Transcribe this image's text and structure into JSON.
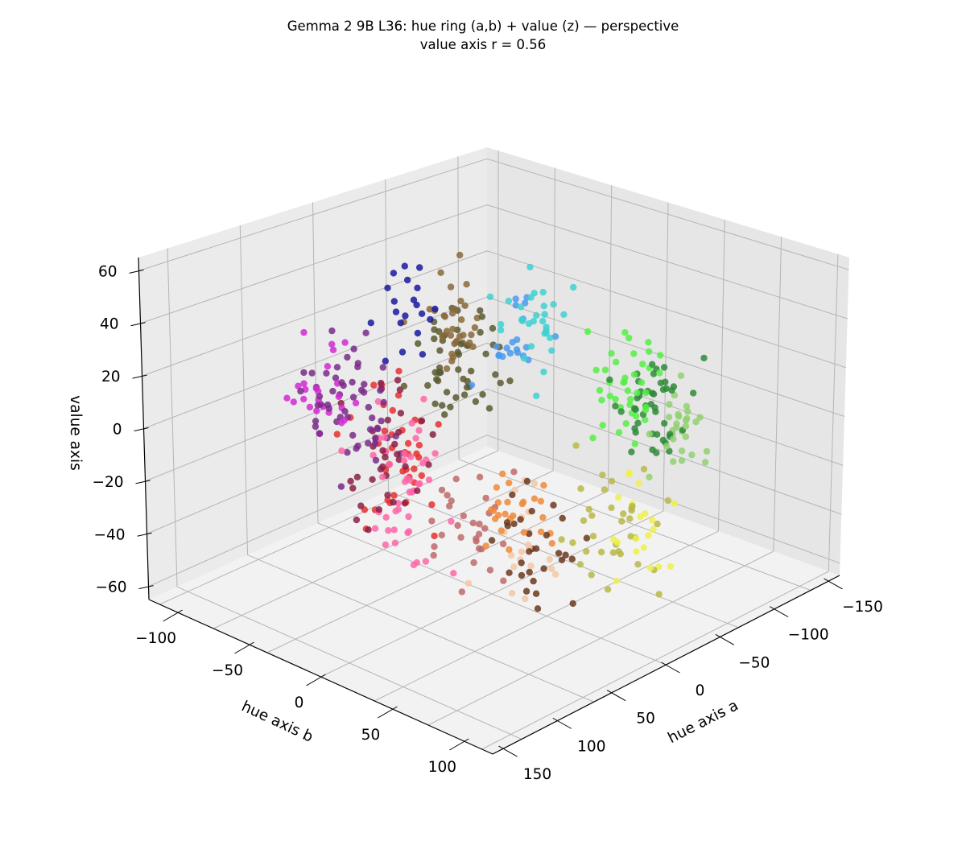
{
  "chart_data": {
    "type": "scatter",
    "title": "Gemma 2 9B L36: hue ring (a,b) + value (z) — perspective",
    "subtitle": "value axis r = 0.56",
    "xlabel": "hue axis a",
    "ylabel": "hue axis b",
    "zlabel": "value axis",
    "xlim": [
      -160,
      160
    ],
    "ylim": [
      -120,
      120
    ],
    "zlim": [
      -65,
      65
    ],
    "x_ticks": [
      -150,
      -100,
      -50,
      0,
      50,
      100,
      150
    ],
    "y_ticks": [
      -100,
      -50,
      0,
      50,
      100
    ],
    "z_ticks": [
      -60,
      -40,
      -20,
      0,
      20,
      40,
      60
    ],
    "x_tick_labels": [
      "−150",
      "−100",
      "−50",
      "0",
      "50",
      "100",
      "150"
    ],
    "y_tick_labels": [
      "−100",
      "−50",
      "0",
      "50",
      "100"
    ],
    "z_tick_labels": [
      "−60",
      "−40",
      "−20",
      "0",
      "20",
      "40",
      "60"
    ],
    "grid": true,
    "projection": "3d-perspective",
    "view": {
      "elevation_deg": 20,
      "azimuth_deg": -135
    },
    "groups": [
      {
        "color": "#e83030",
        "center": [
          30,
          -80,
          5
        ],
        "spread": [
          22,
          18,
          20
        ],
        "count": 40
      },
      {
        "color": "#ff66a8",
        "center": [
          15,
          -70,
          -5
        ],
        "spread": [
          25,
          20,
          22
        ],
        "count": 45
      },
      {
        "color": "#7a2b8a",
        "center": [
          -5,
          -85,
          20
        ],
        "spread": [
          25,
          20,
          18
        ],
        "count": 55
      },
      {
        "color": "#d42ad4",
        "center": [
          -20,
          -95,
          25
        ],
        "spread": [
          20,
          15,
          15
        ],
        "count": 25
      },
      {
        "color": "#8a2046",
        "center": [
          10,
          -75,
          0
        ],
        "spread": [
          25,
          20,
          20
        ],
        "count": 35
      },
      {
        "color": "#c06a6a",
        "center": [
          40,
          -50,
          -25
        ],
        "spread": [
          25,
          20,
          18
        ],
        "count": 30
      },
      {
        "color": "#6b3a1f",
        "center": [
          55,
          -10,
          -35
        ],
        "spread": [
          25,
          20,
          15
        ],
        "count": 30
      },
      {
        "color": "#f08a38",
        "center": [
          45,
          -15,
          -25
        ],
        "spread": [
          20,
          18,
          15
        ],
        "count": 25
      },
      {
        "color": "#f5c8a8",
        "center": [
          60,
          -25,
          -30
        ],
        "spread": [
          20,
          18,
          15
        ],
        "count": 20
      },
      {
        "color": "#b8b84a",
        "center": [
          90,
          20,
          -30
        ],
        "spread": [
          25,
          20,
          18
        ],
        "count": 35
      },
      {
        "color": "#f0f050",
        "center": [
          95,
          35,
          -30
        ],
        "spread": [
          20,
          18,
          18
        ],
        "count": 20
      },
      {
        "color": "#2f8a3a",
        "center": [
          20,
          95,
          -10
        ],
        "spread": [
          25,
          18,
          18
        ],
        "count": 45
      },
      {
        "color": "#55ee44",
        "center": [
          5,
          90,
          -5
        ],
        "spread": [
          25,
          18,
          18
        ],
        "count": 40
      },
      {
        "color": "#90d070",
        "center": [
          35,
          105,
          -20
        ],
        "spread": [
          20,
          15,
          15
        ],
        "count": 30
      },
      {
        "color": "#3fd0d0",
        "center": [
          -60,
          75,
          15
        ],
        "spread": [
          18,
          15,
          15
        ],
        "count": 30
      },
      {
        "color": "#4a9aee",
        "center": [
          -30,
          40,
          20
        ],
        "spread": [
          25,
          20,
          15
        ],
        "count": 20
      },
      {
        "color": "#1a1aa0",
        "center": [
          -60,
          -10,
          35
        ],
        "spread": [
          15,
          15,
          15
        ],
        "count": 20
      },
      {
        "color": "#5a5a30",
        "center": [
          -20,
          0,
          20
        ],
        "spread": [
          20,
          20,
          18
        ],
        "count": 50
      },
      {
        "color": "#8a6a3a",
        "center": [
          -30,
          0,
          30
        ],
        "spread": [
          15,
          15,
          18
        ],
        "count": 35
      }
    ]
  }
}
